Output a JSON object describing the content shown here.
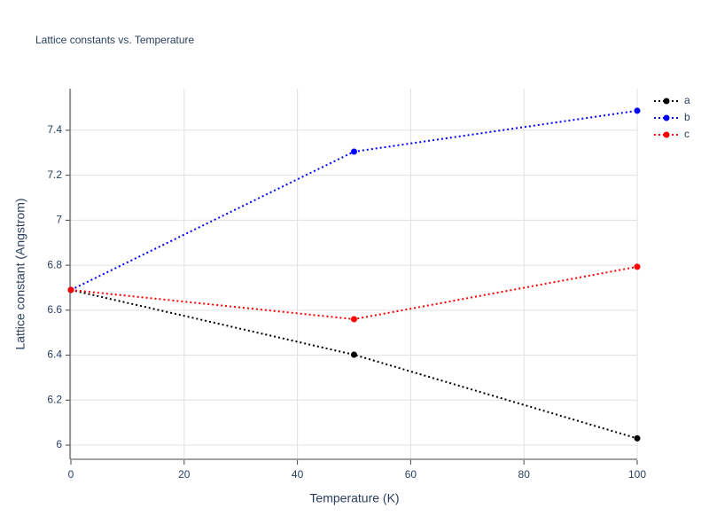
{
  "chart_data": {
    "type": "line",
    "title": "Lattice constants vs. Temperature",
    "x_label": "Temperature (K)",
    "y_label": "Lattice constant (Angstrom)",
    "x": [
      0,
      50,
      100
    ],
    "series": [
      {
        "name": "a",
        "color": "#000000",
        "values": [
          6.69,
          6.402,
          6.03
        ]
      },
      {
        "name": "b",
        "color": "#0000ff",
        "values": [
          6.69,
          7.305,
          7.487
        ]
      },
      {
        "name": "c",
        "color": "#ff0000",
        "values": [
          6.69,
          6.56,
          6.793
        ]
      }
    ],
    "xlim": [
      0,
      100
    ],
    "xticks": [
      0,
      20,
      40,
      60,
      80,
      100
    ],
    "ylim": [
      5.937,
      7.585
    ],
    "yticks": [
      6,
      6.2,
      6.4,
      6.6,
      6.8,
      7,
      7.2,
      7.4
    ],
    "grid": true,
    "line_style": "dotted",
    "legend": "right"
  }
}
